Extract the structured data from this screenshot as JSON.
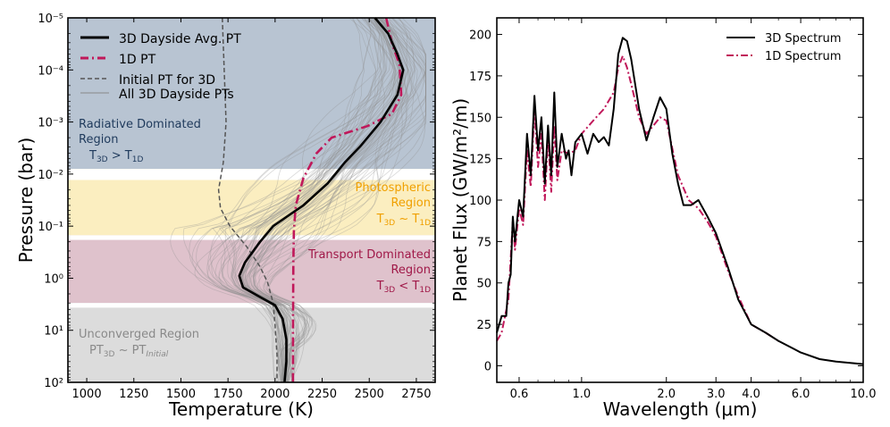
{
  "chart_data": [
    {
      "type": "line",
      "xlabel": "Temperature (K)",
      "ylabel": "Pressure (bar)",
      "xlim": [
        900,
        2850
      ],
      "ylim": [
        100,
        1e-05
      ],
      "yscale": "log",
      "xticks": [
        1000,
        1250,
        1500,
        1750,
        2000,
        2250,
        2500,
        2750
      ],
      "yticks": [
        {
          "exp": -5,
          "label": "10⁻⁵"
        },
        {
          "exp": -4,
          "label": "10⁻⁴"
        },
        {
          "exp": -3,
          "label": "10⁻³"
        },
        {
          "exp": -2,
          "label": "10⁻²"
        },
        {
          "exp": -1,
          "label": "10⁻¹"
        },
        {
          "exp": 0,
          "label": "10⁰"
        },
        {
          "exp": 1,
          "label": "10¹"
        },
        {
          "exp": 2,
          "label": "10²"
        }
      ],
      "regions": [
        {
          "name": "radiative",
          "p_top": 1e-05,
          "p_bottom": 0.008,
          "color": "#b8c4d2"
        },
        {
          "name": "photospheric",
          "p_top": 0.008,
          "p_bottom": 0.15,
          "color": "#fbeec0"
        },
        {
          "name": "transport",
          "p_top": 0.15,
          "p_bottom": 3.0,
          "color": "#dfc2cc"
        },
        {
          "name": "unconverged",
          "p_top": 3.0,
          "p_bottom": 100,
          "color": "#dcdcdc"
        }
      ],
      "annotations": {
        "radiative": {
          "line1": "Radiative Dominated",
          "line2": "Region",
          "t3d": "T",
          "sub3d": "3D",
          "op": " > ",
          "t1d": "T",
          "sub1d": "1D",
          "color": "#1f3a5c"
        },
        "photospheric": {
          "line1": "Photospheric",
          "line2": "Region",
          "t3d": "T",
          "sub3d": "3D",
          "op": " ~ ",
          "t1d": "T",
          "sub1d": "1D",
          "color": "#f0a000"
        },
        "transport": {
          "line1": "Transport Dominated",
          "line2": "Region",
          "t3d": "T",
          "sub3d": "3D",
          "op": " < ",
          "t1d": "T",
          "sub1d": "1D",
          "color": "#a01848"
        },
        "unconverged": {
          "line1": "Unconverged Region",
          "t3d": "PT",
          "sub3d": "3D",
          "op": " ~ ",
          "t1d": "PT",
          "sub1d": "Initial",
          "color": "#8a8a8a"
        }
      },
      "legend": {
        "position": "top-left",
        "entries": [
          {
            "label": "3D Dayside Avg. PT",
            "color": "#000000",
            "style": "solid"
          },
          {
            "label": "1D PT",
            "color": "#c0185a",
            "style": "dashdot"
          },
          {
            "label": "Initial PT for 3D",
            "color": "#555555",
            "style": "dashed"
          },
          {
            "label": "All 3D Dayside PTs",
            "color": "#888888",
            "style": "thin"
          }
        ]
      },
      "series": [
        {
          "name": "3D Dayside Avg. PT",
          "color": "#000000",
          "points": [
            [
              2530,
              1e-05
            ],
            [
              2600,
              2e-05
            ],
            [
              2650,
              5e-05
            ],
            [
              2680,
              0.0001
            ],
            [
              2650,
              0.0003
            ],
            [
              2560,
              0.001
            ],
            [
              2450,
              0.003
            ],
            [
              2370,
              0.006
            ],
            [
              2280,
              0.015
            ],
            [
              2150,
              0.04
            ],
            [
              1990,
              0.1
            ],
            [
              1920,
              0.2
            ],
            [
              1840,
              0.5
            ],
            [
              1810,
              0.9
            ],
            [
              1830,
              1.5
            ],
            [
              1920,
              2.3
            ],
            [
              2000,
              3.3
            ],
            [
              2040,
              6
            ],
            [
              2060,
              15
            ],
            [
              2060,
              40
            ],
            [
              2050,
              100
            ]
          ]
        },
        {
          "name": "1D PT",
          "color": "#c0185a",
          "points": [
            [
              2590,
              1e-05
            ],
            [
              2620,
              3e-05
            ],
            [
              2660,
              8e-05
            ],
            [
              2670,
              0.0003
            ],
            [
              2620,
              0.0007
            ],
            [
              2490,
              0.0012
            ],
            [
              2300,
              0.002
            ],
            [
              2220,
              0.004
            ],
            [
              2150,
              0.012
            ],
            [
              2110,
              0.04
            ],
            [
              2100,
              0.12
            ],
            [
              2097,
              0.5
            ],
            [
              2096,
              2
            ],
            [
              2095,
              10
            ],
            [
              2095,
              100
            ]
          ]
        },
        {
          "name": "Initial PT for 3D",
          "color": "#555555",
          "points": [
            [
              1720,
              1e-05
            ],
            [
              1730,
              0.0001
            ],
            [
              1740,
              0.001
            ],
            [
              1725,
              0.006
            ],
            [
              1700,
              0.02
            ],
            [
              1710,
              0.045
            ],
            [
              1760,
              0.1
            ],
            [
              1850,
              0.25
            ],
            [
              1920,
              0.6
            ],
            [
              1960,
              1.2
            ],
            [
              1990,
              3
            ],
            [
              2000,
              8
            ],
            [
              2010,
              30
            ],
            [
              2010,
              100
            ]
          ]
        }
      ]
    },
    {
      "type": "line",
      "xlabel": "Wavelength (μm)",
      "ylabel": "Planet Flux (GW/m²/m)",
      "xscale": "log",
      "xlim": [
        0.5,
        10.0
      ],
      "ylim": [
        -10,
        210
      ],
      "xticks": [
        0.6,
        1.0,
        2.0,
        3.0,
        4.0,
        6.0,
        10.0
      ],
      "xticklabels": [
        "0.6",
        "1.0",
        "2.0",
        "3.0",
        "4.0",
        "6.0",
        "10.0"
      ],
      "yticks": [
        0,
        25,
        50,
        75,
        100,
        125,
        150,
        175,
        200
      ],
      "legend": {
        "position": "top-right",
        "entries": [
          {
            "label": "3D Spectrum",
            "color": "#000000",
            "style": "solid"
          },
          {
            "label": "1D Spectrum",
            "color": "#c0185a",
            "style": "dashdot"
          }
        ]
      },
      "series": [
        {
          "name": "3D Spectrum",
          "color": "#000000",
          "points": [
            [
              0.5,
              20
            ],
            [
              0.52,
              30
            ],
            [
              0.54,
              30
            ],
            [
              0.55,
              50
            ],
            [
              0.56,
              55
            ],
            [
              0.57,
              90
            ],
            [
              0.58,
              75
            ],
            [
              0.6,
              100
            ],
            [
              0.62,
              90
            ],
            [
              0.64,
              140
            ],
            [
              0.66,
              115
            ],
            [
              0.68,
              163
            ],
            [
              0.7,
              130
            ],
            [
              0.72,
              150
            ],
            [
              0.74,
              110
            ],
            [
              0.76,
              145
            ],
            [
              0.78,
              115
            ],
            [
              0.8,
              165
            ],
            [
              0.82,
              120
            ],
            [
              0.85,
              140
            ],
            [
              0.88,
              125
            ],
            [
              0.9,
              130
            ],
            [
              0.92,
              115
            ],
            [
              0.95,
              135
            ],
            [
              1.0,
              140
            ],
            [
              1.05,
              128
            ],
            [
              1.1,
              140
            ],
            [
              1.15,
              135
            ],
            [
              1.2,
              138
            ],
            [
              1.25,
              133
            ],
            [
              1.3,
              155
            ],
            [
              1.35,
              188
            ],
            [
              1.4,
              198
            ],
            [
              1.45,
              196
            ],
            [
              1.5,
              185
            ],
            [
              1.6,
              155
            ],
            [
              1.7,
              136
            ],
            [
              1.8,
              150
            ],
            [
              1.9,
              162
            ],
            [
              2.0,
              155
            ],
            [
              2.1,
              128
            ],
            [
              2.2,
              110
            ],
            [
              2.3,
              97
            ],
            [
              2.45,
              97
            ],
            [
              2.6,
              100
            ],
            [
              2.8,
              90
            ],
            [
              3.0,
              80
            ],
            [
              3.3,
              60
            ],
            [
              3.6,
              40
            ],
            [
              4.0,
              25
            ],
            [
              4.5,
              20
            ],
            [
              5.0,
              15
            ],
            [
              6.0,
              8
            ],
            [
              7.0,
              4
            ],
            [
              8.0,
              2.5
            ],
            [
              10.0,
              1
            ]
          ]
        },
        {
          "name": "1D Spectrum",
          "color": "#c0185a",
          "points": [
            [
              0.5,
              15
            ],
            [
              0.52,
              20
            ],
            [
              0.55,
              40
            ],
            [
              0.57,
              88
            ],
            [
              0.58,
              70
            ],
            [
              0.6,
              95
            ],
            [
              0.62,
              85
            ],
            [
              0.64,
              130
            ],
            [
              0.66,
              108
            ],
            [
              0.68,
              155
            ],
            [
              0.7,
              120
            ],
            [
              0.72,
              140
            ],
            [
              0.74,
              100
            ],
            [
              0.76,
              138
            ],
            [
              0.78,
              105
            ],
            [
              0.8,
              145
            ],
            [
              0.82,
              112
            ],
            [
              0.85,
              130
            ],
            [
              0.9,
              128
            ],
            [
              0.95,
              130
            ],
            [
              1.0,
              140
            ],
            [
              1.1,
              148
            ],
            [
              1.2,
              155
            ],
            [
              1.3,
              165
            ],
            [
              1.35,
              180
            ],
            [
              1.4,
              187
            ],
            [
              1.45,
              180
            ],
            [
              1.5,
              170
            ],
            [
              1.6,
              150
            ],
            [
              1.7,
              140
            ],
            [
              1.8,
              145
            ],
            [
              1.9,
              150
            ],
            [
              2.0,
              148
            ],
            [
              2.2,
              115
            ],
            [
              2.4,
              100
            ],
            [
              2.6,
              95
            ],
            [
              2.8,
              87
            ],
            [
              3.0,
              78
            ],
            [
              3.3,
              58
            ],
            [
              3.6,
              42
            ],
            [
              4.0,
              25
            ],
            [
              4.5,
              20
            ],
            [
              5.0,
              15
            ]
          ]
        }
      ]
    }
  ]
}
